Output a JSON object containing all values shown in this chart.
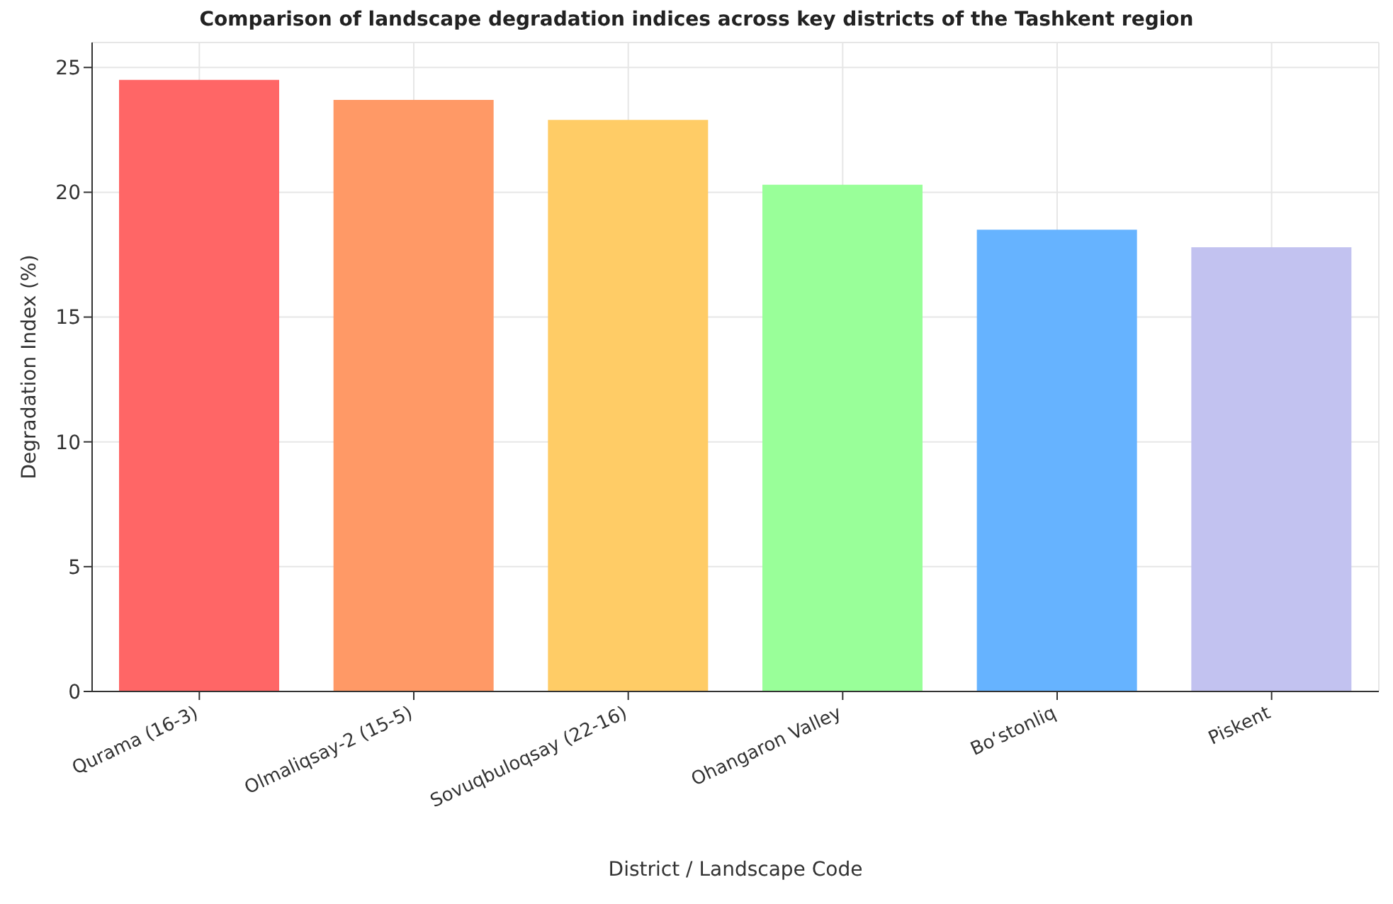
{
  "chart_data": {
    "type": "bar",
    "title": "Comparison of landscape degradation indices across key districts of the Tashkent region",
    "xlabel": "District / Landscape Code",
    "ylabel": "Degradation Index (%)",
    "categories": [
      "Qurama (16-3)",
      "Olmaliqsay-2 (15-5)",
      "Sovuqbuloqsay (22-16)",
      "Ohangaron Valley",
      "Bo‘stonliq",
      "Piskent"
    ],
    "values": [
      24.5,
      23.7,
      22.9,
      20.3,
      18.5,
      17.8
    ],
    "colors": [
      "#ff6666",
      "#ff9966",
      "#ffcc66",
      "#99ff99",
      "#66b3ff",
      "#c2c2f0"
    ],
    "ylim": [
      0,
      26
    ],
    "yticks": [
      0,
      5,
      10,
      15,
      20,
      25
    ],
    "grid": true
  }
}
